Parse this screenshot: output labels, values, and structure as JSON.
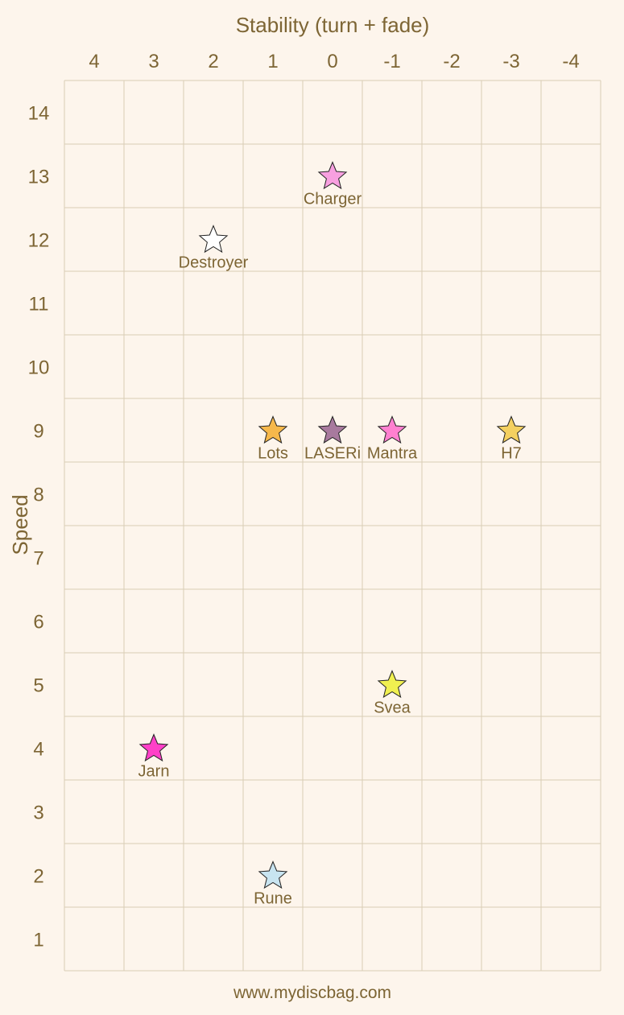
{
  "chart_data": {
    "type": "scatter",
    "xlabel": "Stability (turn + fade)",
    "ylabel": "Speed",
    "x_ticks": [
      4,
      3,
      2,
      1,
      0,
      -1,
      -2,
      -3,
      -4
    ],
    "y_ticks": [
      14,
      13,
      12,
      11,
      10,
      9,
      8,
      7,
      6,
      5,
      4,
      3,
      2,
      1
    ],
    "xlim": [
      4.5,
      -4.5
    ],
    "ylim": [
      0.5,
      14.5
    ],
    "x_reversed": true,
    "grid": true,
    "marker": "star",
    "points": [
      {
        "label": "Charger",
        "x": 0,
        "y": 13,
        "color": "#f8a0e0"
      },
      {
        "label": "Destroyer",
        "x": 2,
        "y": 12,
        "color": "#ffffff"
      },
      {
        "label": "Lots",
        "x": 1,
        "y": 9,
        "color": "#f6b84b"
      },
      {
        "label": "LASERi",
        "x": 0,
        "y": 9,
        "color": "#a87a9e"
      },
      {
        "label": "Mantra",
        "x": -1,
        "y": 9,
        "color": "#ff80d0"
      },
      {
        "label": "H7",
        "x": -3,
        "y": 9,
        "color": "#f4d060"
      },
      {
        "label": "Svea",
        "x": -1,
        "y": 5,
        "color": "#f0f050"
      },
      {
        "label": "Jarn",
        "x": 3,
        "y": 4,
        "color": "#ff40c8"
      },
      {
        "label": "Rune",
        "x": 1,
        "y": 2,
        "color": "#c8e4f0"
      }
    ]
  },
  "footer": "www.mydiscbag.com",
  "colors": {
    "background": "#fdf5ec",
    "text": "#7d6534",
    "grid": "#d9cdb5"
  }
}
